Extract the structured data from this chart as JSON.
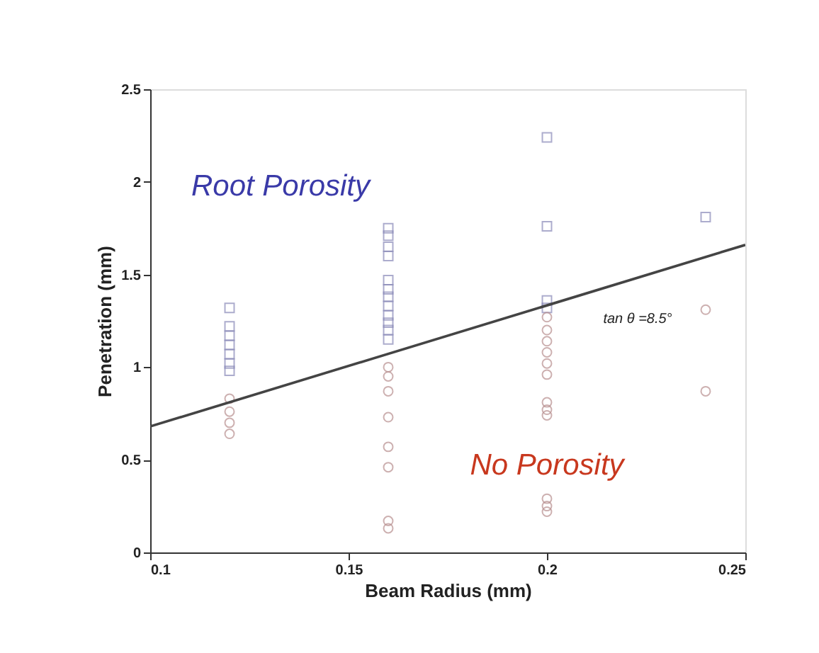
{
  "chart_data": {
    "type": "scatter",
    "xlabel": "Beam Radius (mm)",
    "ylabel": "Penetration (mm)",
    "xlim": [
      0.1,
      0.25
    ],
    "xticks": [
      0.1,
      0.15,
      0.2,
      0.25
    ],
    "ylim": [
      0,
      2.5
    ],
    "yticks": [
      0,
      0.5,
      1,
      1.5,
      2,
      2.5
    ],
    "grid": false,
    "series": [
      {
        "color": "#8a8ab8",
        "marker": "square",
        "x": [
          0.12,
          0.12,
          0.12,
          0.12,
          0.12,
          0.12,
          0.12,
          0.16,
          0.16,
          0.16,
          0.16,
          0.16,
          0.16,
          0.16,
          0.16,
          0.16,
          0.16,
          0.16,
          0.16,
          0.2,
          0.2,
          0.2,
          0.2,
          0.24
        ],
        "values": [
          1.32,
          1.22,
          1.17,
          1.12,
          1.07,
          1.02,
          0.98,
          1.75,
          1.71,
          1.65,
          1.6,
          1.47,
          1.42,
          1.38,
          1.33,
          1.28,
          1.24,
          1.2,
          1.15,
          2.24,
          1.76,
          1.36,
          1.32,
          1.81
        ]
      },
      {
        "color": "#b89090",
        "marker": "circle",
        "x": [
          0.12,
          0.12,
          0.12,
          0.12,
          0.16,
          0.16,
          0.16,
          0.16,
          0.16,
          0.16,
          0.16,
          0.16,
          0.2,
          0.2,
          0.2,
          0.2,
          0.2,
          0.2,
          0.2,
          0.2,
          0.2,
          0.2,
          0.2,
          0.2,
          0.24,
          0.24
        ],
        "values": [
          0.83,
          0.76,
          0.7,
          0.64,
          1.0,
          0.95,
          0.87,
          0.73,
          0.57,
          0.46,
          0.17,
          0.13,
          1.27,
          1.2,
          1.14,
          1.08,
          1.02,
          0.96,
          0.81,
          0.77,
          0.74,
          0.29,
          0.25,
          0.22,
          1.31,
          0.87
        ]
      },
      {
        "type": "line",
        "color": "#444444",
        "line_style": "solid",
        "marker": "none",
        "x": [
          0.1,
          0.25
        ],
        "values": [
          0.68,
          1.66
        ]
      }
    ],
    "annotations": [
      "Root Porosity",
      "No Porosity",
      {
        "text": "tan θ =8.5°",
        "x": 0.22,
        "y": 1.46
      }
    ]
  }
}
